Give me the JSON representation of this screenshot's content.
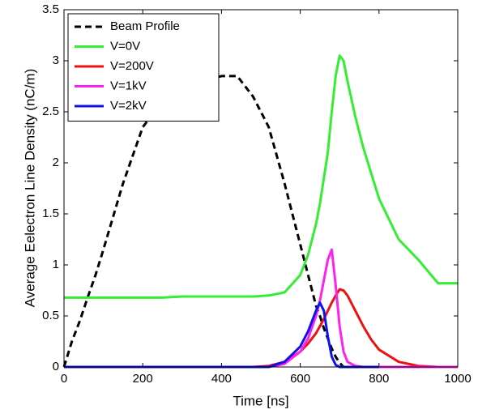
{
  "chart_data": {
    "type": "line",
    "xlabel": "Time [ns]",
    "ylabel": "Average Eelectron Line Density (nC/m)",
    "x": [
      0,
      20,
      40,
      60,
      80,
      100,
      150,
      200,
      250,
      300,
      350,
      400,
      440,
      480,
      520,
      560,
      600,
      620,
      640,
      650,
      660,
      670,
      680,
      690,
      700,
      710,
      720,
      740,
      760,
      780,
      800,
      850,
      900,
      950,
      1000
    ],
    "series": [
      {
        "name": "Beam Profile",
        "color": "#000000",
        "dashed": true,
        "values": [
          0,
          0.25,
          0.45,
          0.68,
          0.9,
          1.15,
          1.8,
          2.35,
          2.6,
          2.75,
          2.8,
          2.85,
          2.85,
          2.65,
          2.35,
          1.8,
          1.2,
          0.9,
          0.6,
          0.5,
          0.38,
          0.28,
          0.18,
          0.1,
          0.04,
          0,
          null,
          null,
          null,
          null,
          null,
          null,
          null,
          null,
          null
        ]
      },
      {
        "name": "V=0V",
        "color": "#33ee33",
        "dashed": false,
        "values": [
          0.68,
          0.68,
          0.68,
          0.68,
          0.68,
          0.68,
          0.68,
          0.68,
          0.68,
          0.69,
          0.69,
          0.69,
          0.69,
          0.69,
          0.7,
          0.73,
          0.9,
          1.1,
          1.4,
          1.6,
          1.85,
          2.1,
          2.5,
          2.85,
          3.05,
          3.0,
          2.8,
          2.45,
          2.15,
          1.9,
          1.65,
          1.25,
          1.05,
          0.82,
          0.82
        ]
      },
      {
        "name": "V=200V",
        "color": "#ee1111",
        "dashed": false,
        "values": [
          0,
          0,
          0,
          0,
          0,
          0,
          0,
          0,
          0,
          0,
          0,
          0,
          0,
          0,
          0.01,
          0.05,
          0.15,
          0.23,
          0.33,
          0.4,
          0.47,
          0.55,
          0.63,
          0.7,
          0.76,
          0.75,
          0.7,
          0.55,
          0.4,
          0.27,
          0.17,
          0.05,
          0.01,
          0,
          0
        ]
      },
      {
        "name": "V=1kV",
        "color": "#ff22ee",
        "dashed": false,
        "values": [
          0,
          0,
          0,
          0,
          0,
          0,
          0,
          0,
          0,
          0,
          0,
          0,
          0,
          0,
          0,
          0.03,
          0.15,
          0.28,
          0.5,
          0.65,
          0.85,
          1.05,
          1.15,
          0.8,
          0.4,
          0.15,
          0.05,
          0.01,
          0,
          0,
          0,
          0,
          0,
          0,
          0
        ]
      },
      {
        "name": "V=2kV",
        "color": "#1111ee",
        "dashed": false,
        "values": [
          0,
          0,
          0,
          0,
          0,
          0,
          0,
          0,
          0,
          0,
          0,
          0,
          0,
          0,
          0,
          0.05,
          0.2,
          0.35,
          0.55,
          0.63,
          0.55,
          0.3,
          0.1,
          0.02,
          0,
          0,
          0,
          0,
          0,
          0,
          0,
          null,
          null,
          null,
          null
        ]
      }
    ],
    "xlim": [
      0,
      1000
    ],
    "xticks": [
      0,
      200,
      400,
      600,
      800,
      1000
    ],
    "ylim": [
      0,
      3.5
    ],
    "yticks": [
      0,
      0.5,
      1,
      1.5,
      2,
      2.5,
      3,
      3.5
    ],
    "grid": false,
    "legend": "upper-left"
  }
}
